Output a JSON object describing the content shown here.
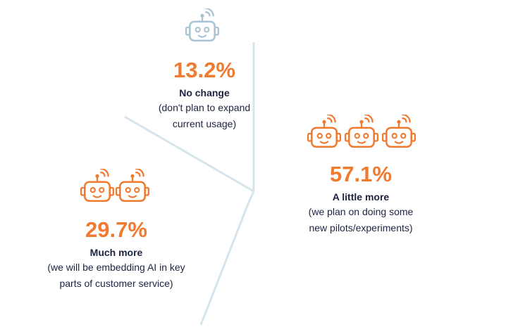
{
  "segments": [
    {
      "percent": "13.2%",
      "label": "No change",
      "description": [
        "(don't plan to expand",
        "current usage)"
      ]
    },
    {
      "percent": "29.7%",
      "label": "Much more",
      "description": [
        "(we will be embedding AI in key",
        "parts of customer service)"
      ]
    },
    {
      "percent": "57.1%",
      "label": "A little more",
      "description": [
        "(we plan on doing some",
        "new pilots/experiments)"
      ]
    }
  ]
}
